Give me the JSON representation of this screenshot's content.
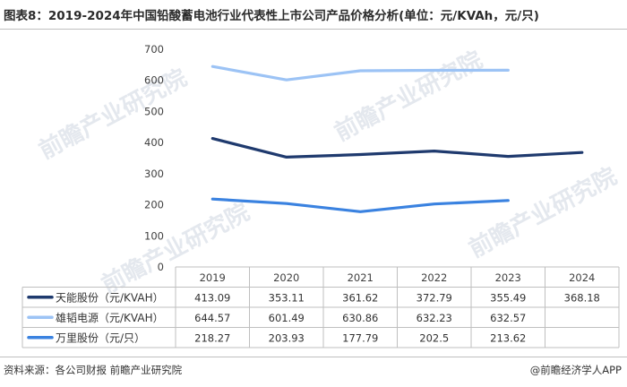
{
  "title": "图表8：2019-2024年中国铅酸蓄电池行业代表性上市公司产品价格分析(单位：元/KVAh，元/只)",
  "source": "资料来源：各公司财报 前瞻产业研究院",
  "brand": "@前瞻经济学人APP",
  "watermark": "前瞻产业研究院",
  "chart_data": {
    "type": "line",
    "categories": [
      "2019",
      "2020",
      "2021",
      "2022",
      "2023",
      "2024"
    ],
    "ylim": [
      0,
      700
    ],
    "yticks": [
      "0",
      "100",
      "200",
      "300",
      "400",
      "500",
      "600",
      "700"
    ],
    "grid": false,
    "legend": "data-table-left",
    "series": [
      {
        "name": "天能股份（元/KVAH）",
        "color": "#1f3a6e",
        "values": [
          413.09,
          353.11,
          361.62,
          372.79,
          355.49,
          368.18
        ],
        "labels": [
          "413.09",
          "353.11",
          "361.62",
          "372.79",
          "355.49",
          "368.18"
        ]
      },
      {
        "name": "雄韬电源（元/KVAH）",
        "color": "#9cc3f5",
        "values": [
          644.57,
          601.49,
          630.86,
          632.23,
          632.57,
          null
        ],
        "labels": [
          "644.57",
          "601.49",
          "630.86",
          "632.23",
          "632.57",
          ""
        ]
      },
      {
        "name": "万里股份（元/只）",
        "color": "#3a82e0",
        "values": [
          218.27,
          203.93,
          177.79,
          202.5,
          213.62,
          null
        ],
        "labels": [
          "218.27",
          "203.93",
          "177.79",
          "202.5",
          "213.62",
          ""
        ]
      }
    ]
  }
}
